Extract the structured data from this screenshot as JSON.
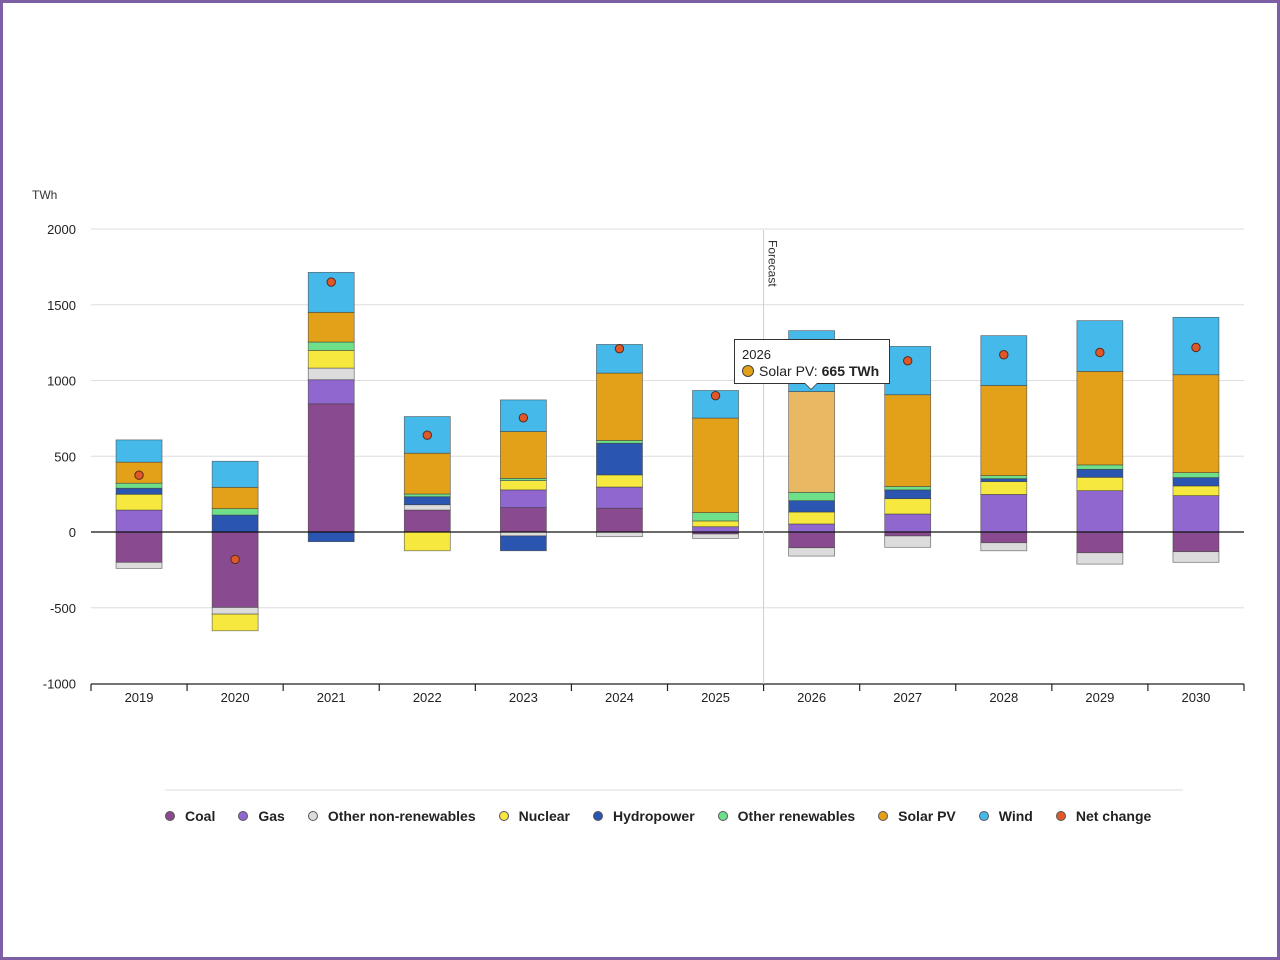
{
  "chart_data": {
    "type": "bar",
    "stacked": true,
    "ylabel": "TWh",
    "ylim": [
      -1000,
      2000
    ],
    "yticks": [
      2000,
      1500,
      1000,
      500,
      0,
      -500,
      -1000
    ],
    "grid": true,
    "legend_placement": "bottom",
    "categories": [
      "2019",
      "2020",
      "2021",
      "2022",
      "2023",
      "2024",
      "2025",
      "2026",
      "2027",
      "2028",
      "2029",
      "2030"
    ],
    "forecast_label": "Forecast",
    "forecast_start": "2026",
    "series": [
      {
        "name": "Coal",
        "color": "#8a4a8f",
        "values": [
          -200,
          -498,
          846,
          145,
          161,
          157,
          -13,
          -104,
          -26,
          -71,
          -137,
          -130
        ]
      },
      {
        "name": "Gas",
        "color": "#9067cf",
        "values": [
          145,
          0,
          159,
          0,
          117,
          140,
          35,
          53,
          119,
          248,
          273,
          240
        ]
      },
      {
        "name": "Other non-renewables",
        "color": "#dcdcdc",
        "values": [
          -40,
          -44,
          77,
          35,
          -26,
          -31,
          -29,
          -55,
          -75,
          -53,
          -75,
          -70
        ]
      },
      {
        "name": "Nuclear",
        "color": "#f6e83e",
        "values": [
          104,
          -110,
          117,
          -124,
          61,
          80,
          38,
          79,
          101,
          85,
          88,
          64
        ]
      },
      {
        "name": "Hydropower",
        "color": "#2a55b0",
        "values": [
          40,
          112,
          -64,
          53,
          -98,
          209,
          0,
          75,
          58,
          19,
          53,
          55
        ]
      },
      {
        "name": "Other renewables",
        "color": "#6fe08a",
        "values": [
          33,
          42,
          55,
          18,
          15,
          18,
          55,
          55,
          22,
          20,
          29,
          33
        ]
      },
      {
        "name": "Solar PV",
        "color": "#e3a019",
        "values": [
          139,
          141,
          196,
          269,
          309,
          445,
          624,
          665,
          606,
          595,
          617,
          646
        ]
      },
      {
        "name": "Wind",
        "color": "#45b9ea",
        "values": [
          147,
          172,
          264,
          242,
          209,
          189,
          182,
          402,
          319,
          329,
          335,
          379
        ]
      }
    ],
    "net_change": {
      "name": "Net change",
      "color": "#e0582a",
      "values": [
        375,
        -181,
        1650,
        639,
        754,
        1210,
        900,
        1170,
        1130,
        1170,
        1185,
        1218
      ]
    },
    "tooltip": {
      "year": "2026",
      "series": "Solar PV:",
      "value": "665 TWh",
      "color": "#e3a019",
      "highlight_color": "#e9b862"
    }
  }
}
